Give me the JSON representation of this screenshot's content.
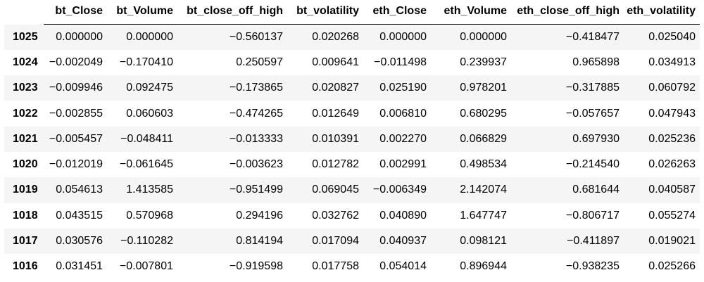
{
  "dataframe": {
    "columns": [
      "bt_Close",
      "bt_Volume",
      "bt_close_off_high",
      "bt_volatility",
      "eth_Close",
      "eth_Volume",
      "eth_close_off_high",
      "eth_volatility"
    ],
    "rows": [
      {
        "index": "1025",
        "cells": [
          "0.000000",
          "0.000000",
          "−0.560137",
          "0.020268",
          "0.000000",
          "0.000000",
          "−0.418477",
          "0.025040"
        ]
      },
      {
        "index": "1024",
        "cells": [
          "−0.002049",
          "−0.170410",
          "0.250597",
          "0.009641",
          "−0.011498",
          "0.239937",
          "0.965898",
          "0.034913"
        ]
      },
      {
        "index": "1023",
        "cells": [
          "−0.009946",
          "0.092475",
          "−0.173865",
          "0.020827",
          "0.025190",
          "0.978201",
          "−0.317885",
          "0.060792"
        ]
      },
      {
        "index": "1022",
        "cells": [
          "−0.002855",
          "0.060603",
          "−0.474265",
          "0.012649",
          "0.006810",
          "0.680295",
          "−0.057657",
          "0.047943"
        ]
      },
      {
        "index": "1021",
        "cells": [
          "−0.005457",
          "−0.048411",
          "−0.013333",
          "0.010391",
          "0.002270",
          "0.066829",
          "0.697930",
          "0.025236"
        ]
      },
      {
        "index": "1020",
        "cells": [
          "−0.012019",
          "−0.061645",
          "−0.003623",
          "0.012782",
          "0.002991",
          "0.498534",
          "−0.214540",
          "0.026263"
        ]
      },
      {
        "index": "1019",
        "cells": [
          "0.054613",
          "1.413585",
          "−0.951499",
          "0.069045",
          "−0.006349",
          "2.142074",
          "0.681644",
          "0.040587"
        ]
      },
      {
        "index": "1018",
        "cells": [
          "0.043515",
          "0.570968",
          "0.294196",
          "0.032762",
          "0.040890",
          "1.647747",
          "−0.806717",
          "0.055274"
        ]
      },
      {
        "index": "1017",
        "cells": [
          "0.030576",
          "−0.110282",
          "0.814194",
          "0.017094",
          "0.040937",
          "0.098121",
          "−0.411897",
          "0.019021"
        ]
      },
      {
        "index": "1016",
        "cells": [
          "0.031451",
          "−0.007801",
          "−0.919598",
          "0.017758",
          "0.054014",
          "0.896944",
          "−0.938235",
          "0.025266"
        ]
      }
    ]
  }
}
